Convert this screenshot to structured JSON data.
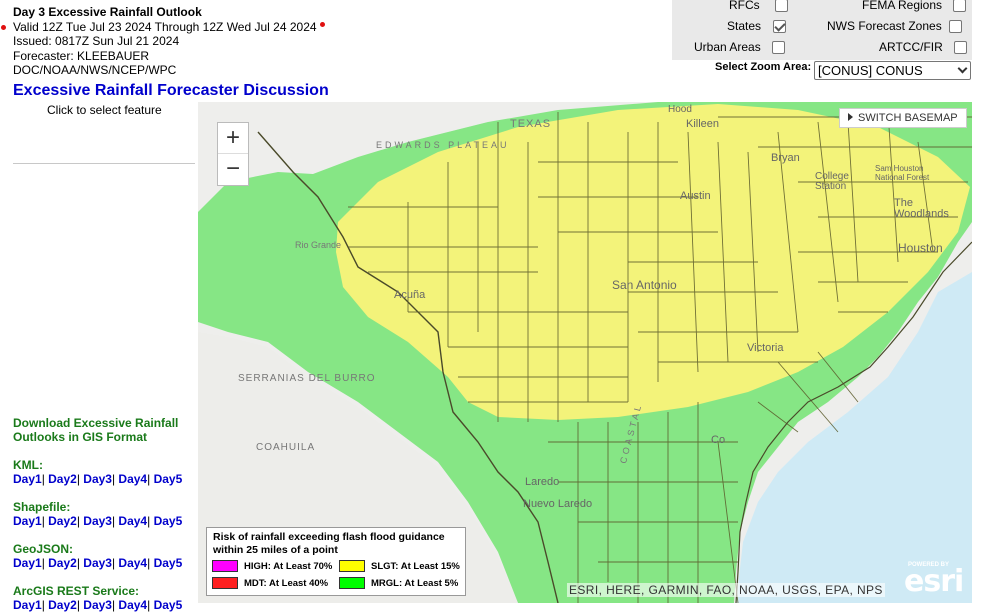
{
  "header": {
    "title": "Day 3 Excessive Rainfall Outlook",
    "valid": "Valid 12Z Tue Jul 23 2024 Through 12Z Wed Jul 24 2024",
    "issued": "Issued: 0817Z Sun Jul 21 2024",
    "forecaster": "Forecaster: KLEEBAUER",
    "agency": "DOC/NOAA/NWS/NCEP/WPC"
  },
  "layers": {
    "rfcs": {
      "label": "RFCs",
      "checked": false
    },
    "states": {
      "label": "States",
      "checked": true
    },
    "urban": {
      "label": "Urban Areas",
      "checked": false
    },
    "fema": {
      "label": "FEMA Regions",
      "checked": false
    },
    "nws_zones": {
      "label": "NWS Forecast Zones",
      "checked": false
    },
    "artcc": {
      "label": "ARTCC/FIR",
      "checked": false
    }
  },
  "zoom": {
    "label": "Select Zoom Area:",
    "selected": "[CONUS] CONUS"
  },
  "discussion_link": "Excessive Rainfall Forecaster Discussion",
  "select_hint": "Click to select feature",
  "gis": {
    "download_title_1": "Download Excessive Rainfall",
    "download_title_2": "Outlooks in GIS Format",
    "kml": "KML:",
    "shapefile": "Shapefile:",
    "geojson": "GeoJSON:",
    "arcgis": "ArcGIS REST Service:",
    "days": [
      "Day1",
      "Day2",
      "Day3",
      "Day4",
      "Day5"
    ]
  },
  "map": {
    "zoom_in": "+",
    "zoom_out": "−",
    "switch_basemap": "SWITCH BASEMAP",
    "attribution": "ESRI, HERE, GARMIN, FAO, NOAA, USGS, EPA, NPS",
    "powered_by": "POWERED BY",
    "esri": "esri",
    "labels": {
      "texas": "TEXAS",
      "edwards": "EDWARDS PLATEAU",
      "serranias": "SERRANIAS DEL BURRO",
      "coahuila": "COAHUILA",
      "rio_grande": "Rio Grande",
      "coastal": "COASTAL"
    },
    "cities": [
      "Killeen",
      "Bryan",
      "College Station",
      "Austin",
      "Sam Houston National Forest",
      "The Woodlands",
      "Houston",
      "San Antonio",
      "Acuña",
      "Victoria",
      "Laredo",
      "Nuevo Laredo",
      "Corpus Christi",
      "Hood"
    ]
  },
  "legend": {
    "title_1": "Risk of rainfall exceeding flash flood guidance",
    "title_2": "within 25 miles of a point",
    "items": [
      {
        "label": "HIGH: At Least 70%",
        "color": "#ff00ff"
      },
      {
        "label": "SLGT: At Least 15%",
        "color": "#ffff00"
      },
      {
        "label": "MDT: At Least 40%",
        "color": "#ff2020"
      },
      {
        "label": "MRGL: At Least 5%",
        "color": "#00ff00"
      }
    ]
  },
  "colors": {
    "mrgl_fill": "#7fe57f",
    "slgt_fill": "#f3f37a",
    "link": "#0000cc",
    "gis_green": "#1a7a1a",
    "water": "#cfeaf5"
  }
}
